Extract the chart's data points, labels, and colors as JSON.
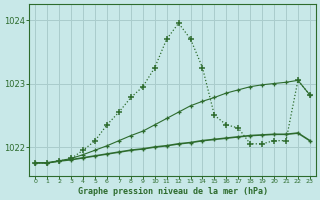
{
  "title": "Graphe pression niveau de la mer (hPa)",
  "bg_color": "#c8e8e8",
  "grid_color": "#aacccc",
  "line_color": "#2d6b2d",
  "ylim": [
    1021.55,
    1024.25
  ],
  "yticks": [
    1022,
    1023,
    1024
  ],
  "xlim": [
    -0.5,
    23.5
  ],
  "xticks": [
    0,
    1,
    2,
    3,
    4,
    5,
    6,
    7,
    8,
    9,
    10,
    11,
    12,
    13,
    14,
    15,
    16,
    17,
    18,
    19,
    20,
    21,
    22,
    23
  ],
  "series_dotted": [
    1021.75,
    1021.75,
    1021.78,
    1021.82,
    1021.95,
    1022.1,
    1022.35,
    1022.55,
    1022.78,
    1022.95,
    1023.25,
    1023.7,
    1023.95,
    1023.7,
    1023.25,
    1022.5,
    1022.35,
    1022.3,
    1022.05,
    1022.05,
    1022.1,
    1022.1,
    1023.05,
    1022.82
  ],
  "series_linear_upper": [
    1021.75,
    1021.75,
    1021.78,
    1021.82,
    1021.88,
    1021.95,
    1022.02,
    1022.1,
    1022.18,
    1022.25,
    1022.35,
    1022.45,
    1022.55,
    1022.65,
    1022.72,
    1022.78,
    1022.85,
    1022.9,
    1022.95,
    1022.98,
    1023.0,
    1023.02,
    1023.05,
    1022.82
  ],
  "series_linear_lower": [
    1021.75,
    1021.75,
    1021.78,
    1021.8,
    1021.83,
    1021.86,
    1021.89,
    1021.92,
    1021.95,
    1021.97,
    1022.0,
    1022.02,
    1022.05,
    1022.07,
    1022.1,
    1022.12,
    1022.14,
    1022.16,
    1022.18,
    1022.19,
    1022.2,
    1022.2,
    1022.22,
    1022.1
  ]
}
